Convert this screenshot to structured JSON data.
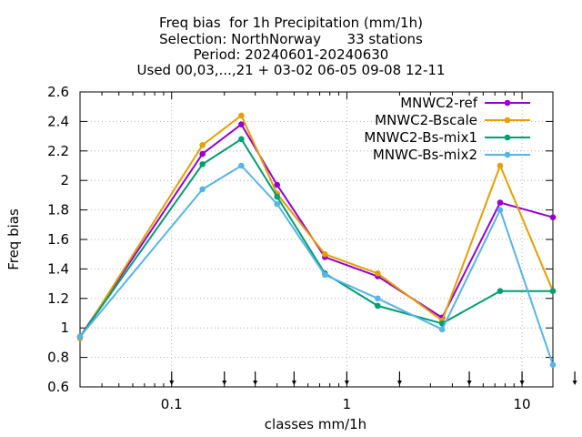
{
  "chart_data": {
    "type": "line",
    "title_lines": [
      "Freq bias  for 1h Precipitation (mm/1h)",
      "Selection: NorthNorway      33 stations",
      "Period: 20240601-20240630",
      "Used 00,03,...,21 + 03-02 06-05 09-08 12-11"
    ],
    "xlabel": "classes mm/1h",
    "ylabel": "Freq bias",
    "x_scale": "log",
    "xlim": [
      0.03,
      15
    ],
    "ylim": [
      0.6,
      2.6
    ],
    "y_ticks": [
      0.6,
      0.8,
      1,
      1.2,
      1.4,
      1.6,
      1.8,
      2,
      2.2,
      2.4,
      2.6
    ],
    "y_tick_labels": [
      "0.6",
      "0.8",
      "1",
      "1.2",
      "1.4",
      "1.6",
      "1.8",
      "2",
      "2.2",
      "2.4",
      "2.6"
    ],
    "x_ticks": [
      0.1,
      1,
      10
    ],
    "x_tick_labels": [
      "0.1",
      "1",
      "10"
    ],
    "grid": true,
    "legend_position": "top-right",
    "class_markers": [
      0.1,
      0.2,
      0.3,
      0.5,
      1,
      2,
      5,
      10,
      20
    ],
    "series": [
      {
        "name": "MNWC2-ref",
        "color": "#9400d3",
        "x": [
          0.03,
          0.15,
          0.25,
          0.4,
          0.75,
          1.5,
          3.5,
          7.5,
          15
        ],
        "y": [
          0.94,
          2.18,
          2.38,
          1.97,
          1.48,
          1.35,
          1.07,
          1.85,
          1.75
        ]
      },
      {
        "name": "MNWC2-Bscale",
        "color": "#e69f00",
        "x": [
          0.03,
          0.15,
          0.25,
          0.4,
          0.75,
          1.5,
          3.5,
          7.5,
          15
        ],
        "y": [
          0.93,
          2.24,
          2.44,
          1.91,
          1.5,
          1.37,
          1.05,
          2.1,
          1.25
        ]
      },
      {
        "name": "MNWC2-Bs-mix1",
        "color": "#009e73",
        "x": [
          0.03,
          0.15,
          0.25,
          0.4,
          0.75,
          1.5,
          3.5,
          7.5,
          15
        ],
        "y": [
          0.94,
          2.11,
          2.28,
          1.89,
          1.37,
          1.15,
          1.03,
          1.25,
          1.25
        ]
      },
      {
        "name": "MNWC-Bs-mix2",
        "color": "#56b4e9",
        "x": [
          0.03,
          0.15,
          0.25,
          0.4,
          0.75,
          1.5,
          3.5,
          7.5,
          15
        ],
        "y": [
          0.94,
          1.94,
          2.1,
          1.84,
          1.36,
          1.2,
          0.99,
          1.8,
          0.75
        ]
      }
    ]
  }
}
